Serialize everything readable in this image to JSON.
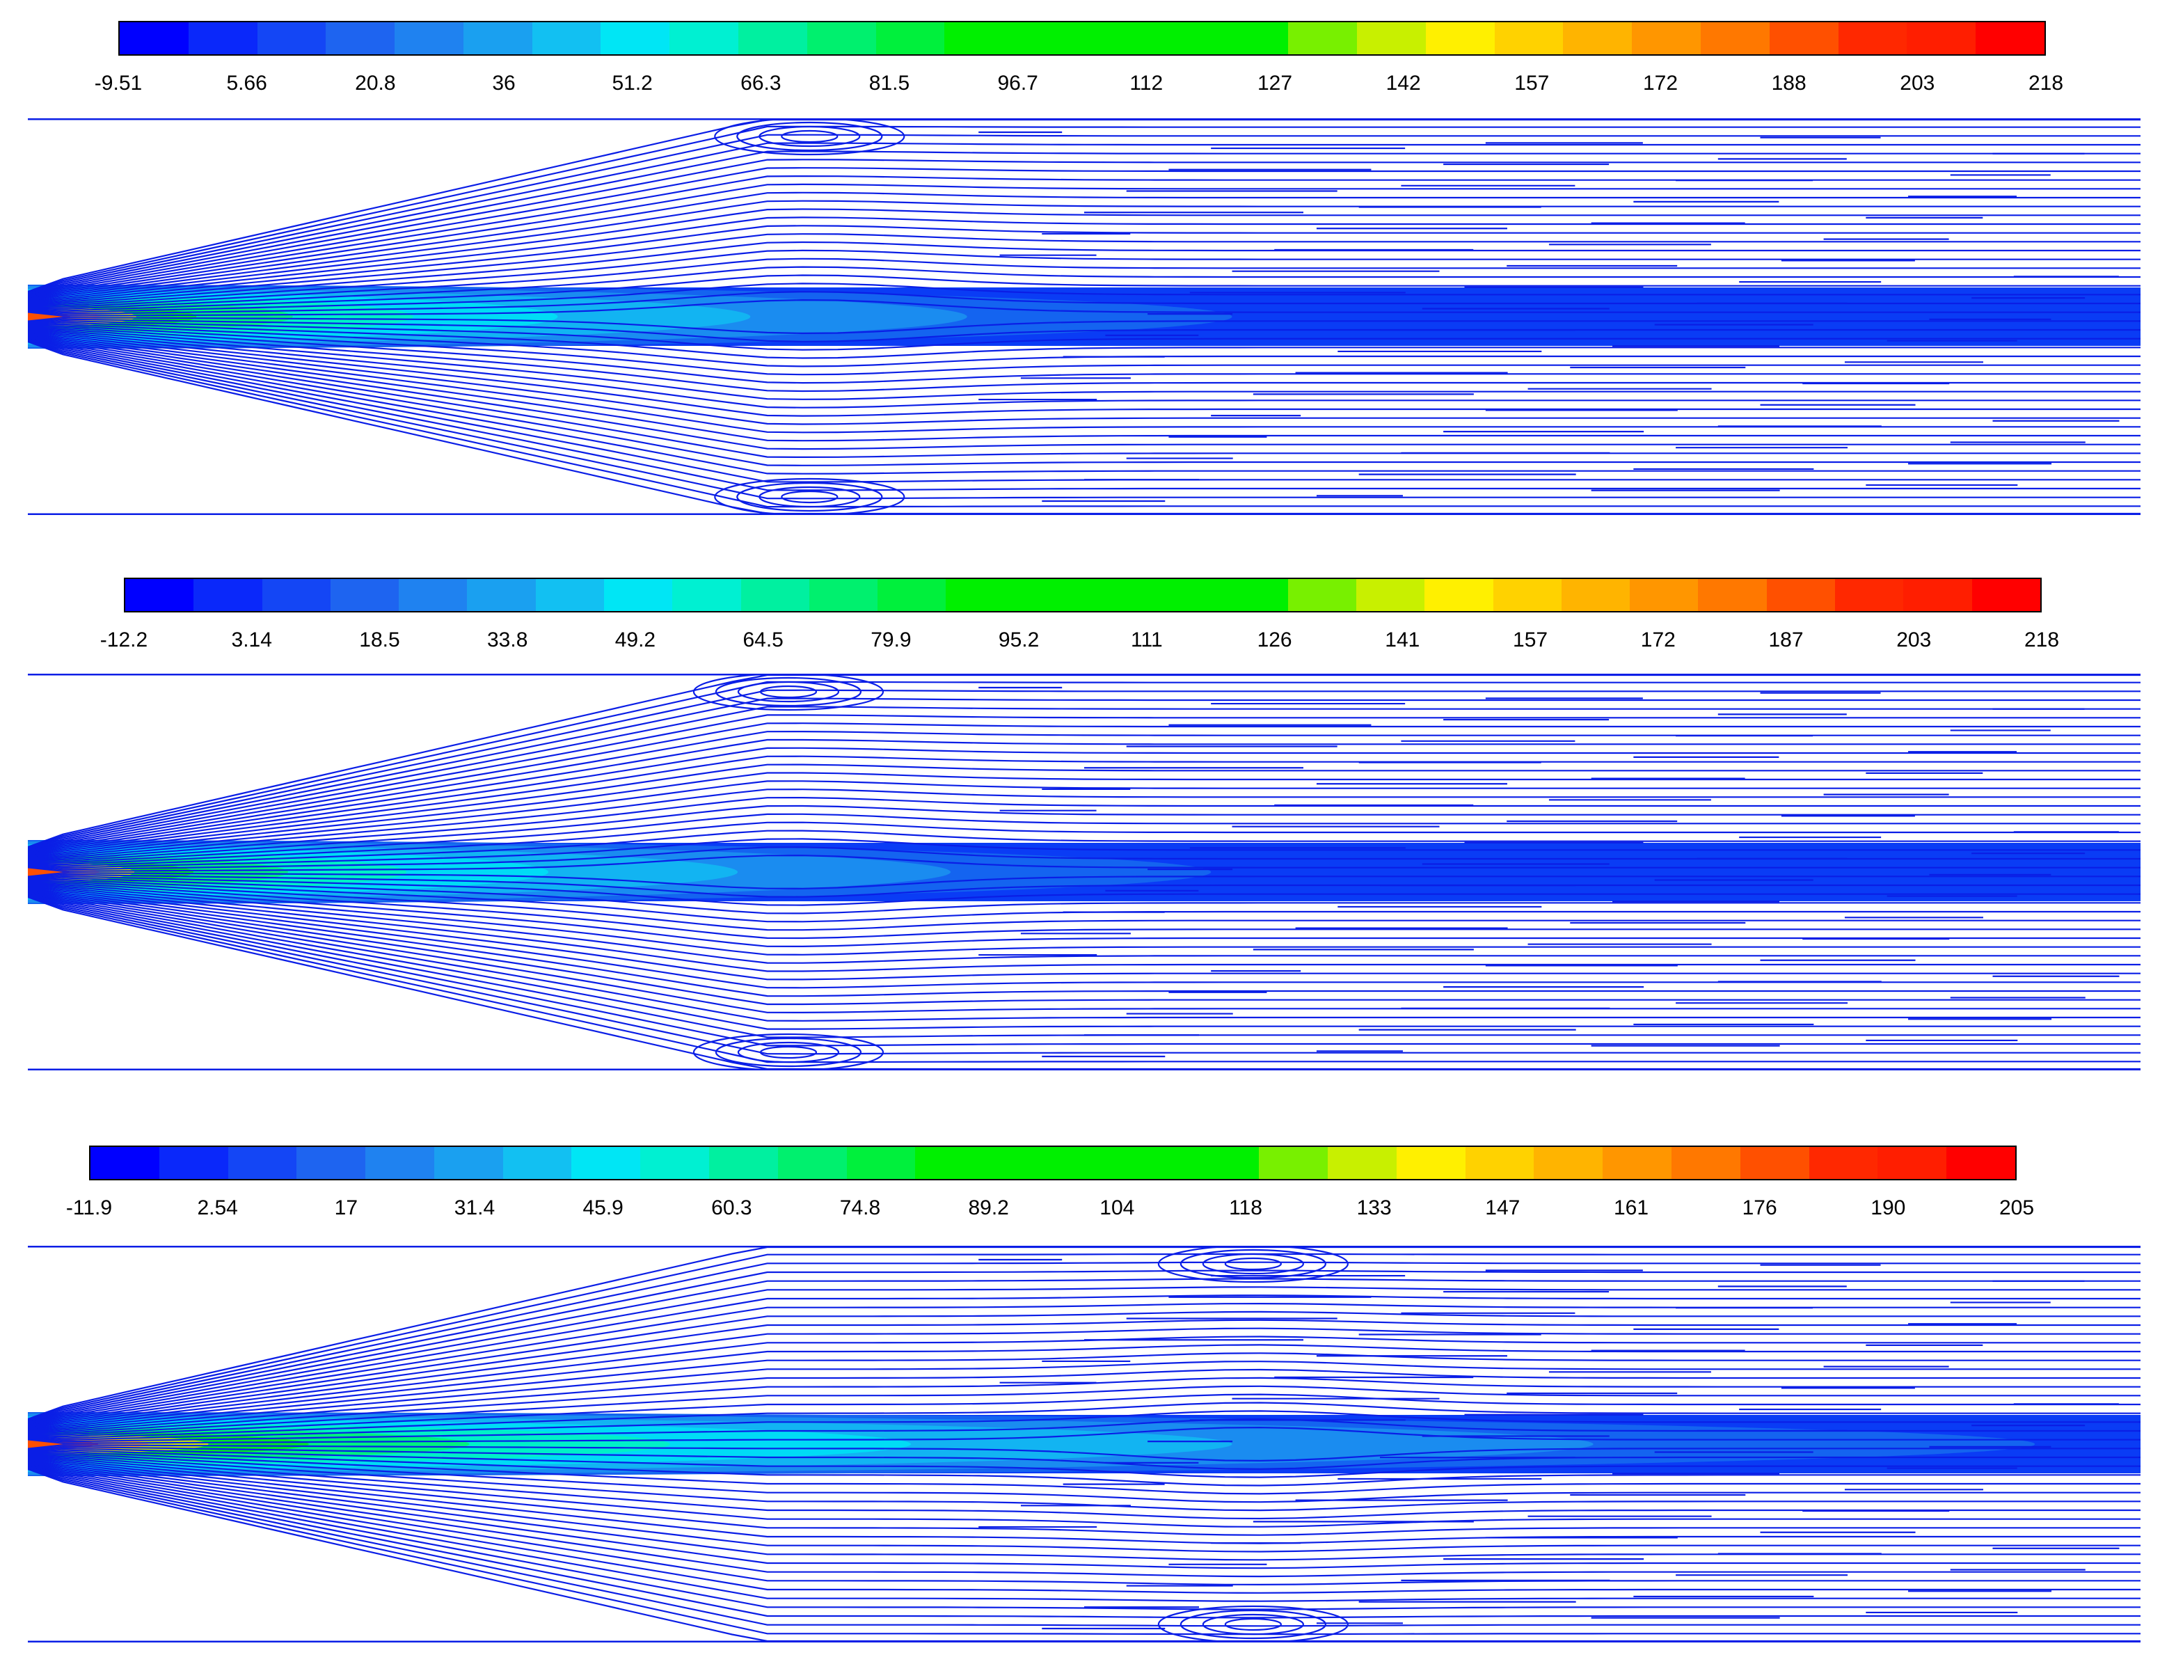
{
  "chart_data": [
    {
      "type": "heatmap",
      "panel": "top",
      "colorbar_ticks": [
        "-9.51",
        "5.66",
        "20.8",
        "36",
        "51.2",
        "66.3",
        "81.5",
        "96.7",
        "112",
        "127",
        "142",
        "157",
        "172",
        "188",
        "203",
        "218"
      ],
      "range": [
        -9.51,
        218
      ],
      "annotations": "streamlines with two recirculation eddies (upper and lower) near mid-span",
      "core_length_frac": 0.57,
      "eddy_x_frac": 0.37
    },
    {
      "type": "heatmap",
      "panel": "middle",
      "colorbar_ticks": [
        "-12.2",
        "3.14",
        "18.5",
        "33.8",
        "49.2",
        "64.5",
        "79.9",
        "95.2",
        "111",
        "126",
        "141",
        "157",
        "172",
        "187",
        "203",
        "218"
      ],
      "range": [
        -12.2,
        218
      ],
      "annotations": "streamlines with two recirculation eddies (upper and lower) near one-third span",
      "core_length_frac": 0.56,
      "eddy_x_frac": 0.36
    },
    {
      "type": "heatmap",
      "panel": "bottom",
      "colorbar_ticks": [
        "-11.9",
        "2.54",
        "17",
        "31.4",
        "45.9",
        "60.3",
        "74.8",
        "89.2",
        "104",
        "118",
        "133",
        "147",
        "161",
        "176",
        "190",
        "205"
      ],
      "range": [
        -11.9,
        205
      ],
      "annotations": "streamlines with two recirculation eddies (upper and lower) past mid-span",
      "core_length_frac": 0.95,
      "eddy_x_frac": 0.58
    }
  ],
  "colors": {
    "streamline": "#0a1ee6",
    "colormap": [
      "#0000ff",
      "#0a28fa",
      "#1446f5",
      "#1e64f0",
      "#1f82f0",
      "#1aa0f0",
      "#12c0f2",
      "#00e6f5",
      "#00f0d2",
      "#00f0a0",
      "#00f06e",
      "#00f03c",
      "#00f000",
      "#00f000",
      "#00f000",
      "#00f000",
      "#00f000",
      "#78f000",
      "#c8f000",
      "#fff000",
      "#ffd200",
      "#ffb400",
      "#ff9600",
      "#ff7800",
      "#ff5000",
      "#ff2800",
      "#ff1e00",
      "#ff0000"
    ]
  }
}
